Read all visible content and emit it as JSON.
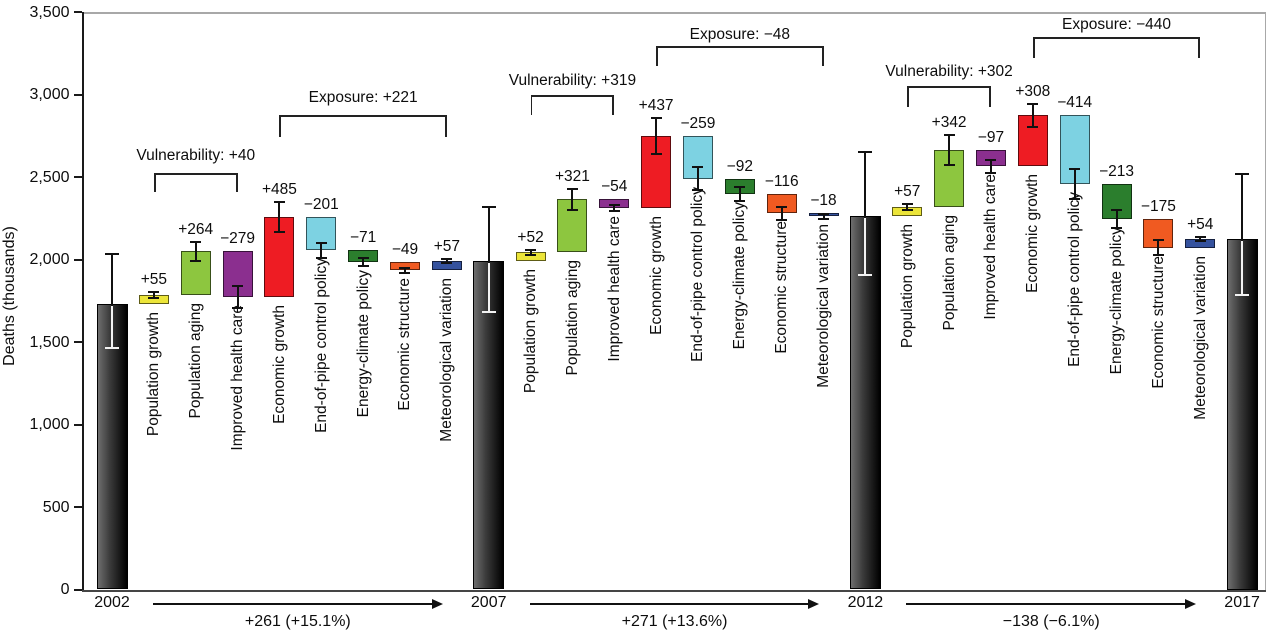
{
  "chart_data": {
    "type": "bar",
    "subtype": "waterfall-decomposition",
    "title": "",
    "ylabel": "Deaths (thousands)",
    "ylim": [
      0,
      3500
    ],
    "yticks": [
      {
        "value": 0,
        "label": "0"
      },
      {
        "value": 500,
        "label": "500"
      },
      {
        "value": 1000,
        "label": "1,000"
      },
      {
        "value": 1500,
        "label": "1,500"
      },
      {
        "value": 2000,
        "label": "2,000"
      },
      {
        "value": 2500,
        "label": "2,500"
      },
      {
        "value": 3000,
        "label": "3,000"
      },
      {
        "value": 3500,
        "label": "3,500"
      }
    ],
    "grid": false,
    "years": [
      {
        "label": "2002",
        "value": 1731,
        "ci_low": 1465,
        "ci_high": 2035
      },
      {
        "label": "2007",
        "value": 1992,
        "ci_low": 1683,
        "ci_high": 2321
      },
      {
        "label": "2012",
        "value": 2263,
        "ci_low": 1908,
        "ci_high": 2649
      },
      {
        "label": "2017",
        "value": 2125,
        "ci_low": 1786,
        "ci_high": 2516
      }
    ],
    "factors": [
      "Population growth",
      "Population aging",
      "Improved health care",
      "Economic growth",
      "End-of-pipe control policy",
      "Energy-climate policy",
      "Economic structure",
      "Meteorological variation"
    ],
    "factor_colors": {
      "Population growth": "#ece539",
      "Population aging": "#8dc63f",
      "Improved health care": "#8b2f8f",
      "Economic growth": "#ee1c23",
      "End-of-pipe control policy": "#7dd2e2",
      "Energy-climate policy": "#2b7e2d",
      "Economic structure": "#f05a21",
      "Meteorological variation": "#35529e"
    },
    "bar_color": "#1a1a1a",
    "segments": [
      {
        "from": "2002",
        "to": "2007",
        "vulnerability": 40,
        "vulnerability_label": "Vulnerability: +40",
        "exposure": 221,
        "exposure_label": "Exposure: +221",
        "total": 261,
        "total_label": "+261 (+15.1%)",
        "steps": [
          {
            "factor": "Population growth",
            "delta": 55,
            "label": "+55",
            "err": 20
          },
          {
            "factor": "Population aging",
            "delta": 264,
            "label": "+264",
            "err": 58
          },
          {
            "factor": "Improved health care",
            "delta": -279,
            "label": "−279",
            "err": 67
          },
          {
            "factor": "Economic growth",
            "delta": 485,
            "label": "+485",
            "err": 90
          },
          {
            "factor": "End-of-pipe control policy",
            "delta": -201,
            "label": "−201",
            "err": 45
          },
          {
            "factor": "Energy-climate policy",
            "delta": -71,
            "label": "−71",
            "err": 25
          },
          {
            "factor": "Economic structure",
            "delta": -49,
            "label": "−49",
            "err": 14
          },
          {
            "factor": "Meteorological variation",
            "delta": 57,
            "label": "+57",
            "err": 14
          }
        ]
      },
      {
        "from": "2007",
        "to": "2012",
        "vulnerability": 319,
        "vulnerability_label": "Vulnerability: +319",
        "exposure": -48,
        "exposure_label": "Exposure: −48",
        "total": 271,
        "total_label": "+271 (+13.6%)",
        "steps": [
          {
            "factor": "Population growth",
            "delta": 52,
            "label": "+52",
            "err": 15
          },
          {
            "factor": "Population aging",
            "delta": 321,
            "label": "+321",
            "err": 65
          },
          {
            "factor": "Improved health care",
            "delta": -54,
            "label": "−54",
            "err": 20
          },
          {
            "factor": "Economic growth",
            "delta": 437,
            "label": "+437",
            "err": 110
          },
          {
            "factor": "End-of-pipe control policy",
            "delta": -259,
            "label": "−259",
            "err": 70
          },
          {
            "factor": "Energy-climate policy",
            "delta": -92,
            "label": "−92",
            "err": 45
          },
          {
            "factor": "Economic structure",
            "delta": -116,
            "label": "−116",
            "err": 40
          },
          {
            "factor": "Meteorological variation",
            "delta": -18,
            "label": "−18",
            "err": 15
          }
        ]
      },
      {
        "from": "2012",
        "to": "2017",
        "vulnerability": 302,
        "vulnerability_label": "Vulnerability: +302",
        "exposure": -440,
        "exposure_label": "Exposure: −440",
        "total": -138,
        "total_label": "−138 (−6.1%)",
        "steps": [
          {
            "factor": "Population growth",
            "delta": 57,
            "label": "+57",
            "err": 18
          },
          {
            "factor": "Population aging",
            "delta": 342,
            "label": "+342",
            "err": 90
          },
          {
            "factor": "Improved health care",
            "delta": -97,
            "label": "−97",
            "err": 40
          },
          {
            "factor": "Economic growth",
            "delta": 308,
            "label": "+308",
            "err": 70
          },
          {
            "factor": "End-of-pipe control policy",
            "delta": -414,
            "label": "−414",
            "err": 90
          },
          {
            "factor": "Energy-climate policy",
            "delta": -213,
            "label": "−213",
            "err": 55
          },
          {
            "factor": "Economic structure",
            "delta": -175,
            "label": "−175",
            "err": 45
          },
          {
            "factor": "Meteorological variation",
            "delta": 54,
            "label": "+54",
            "err": 14
          }
        ]
      }
    ]
  }
}
